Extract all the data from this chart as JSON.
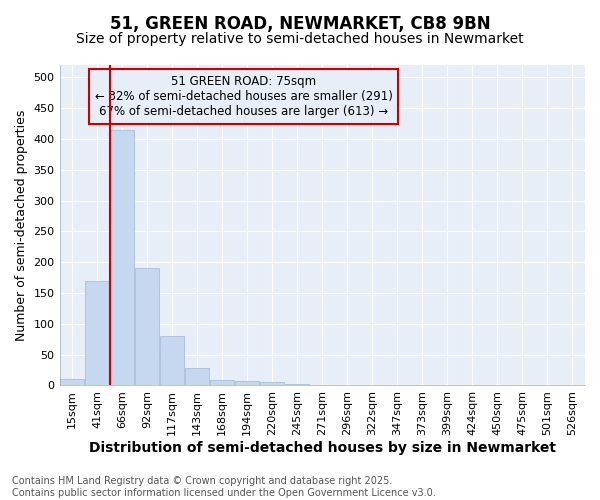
{
  "title": "51, GREEN ROAD, NEWMARKET, CB8 9BN",
  "subtitle": "Size of property relative to semi-detached houses in Newmarket",
  "xlabel": "Distribution of semi-detached houses by size in Newmarket",
  "ylabel": "Number of semi-detached properties",
  "categories": [
    "15sqm",
    "41sqm",
    "66sqm",
    "92sqm",
    "117sqm",
    "143sqm",
    "168sqm",
    "194sqm",
    "220sqm",
    "245sqm",
    "271sqm",
    "296sqm",
    "322sqm",
    "347sqm",
    "373sqm",
    "399sqm",
    "424sqm",
    "450sqm",
    "475sqm",
    "501sqm",
    "526sqm"
  ],
  "values": [
    10,
    170,
    415,
    190,
    80,
    28,
    9,
    7,
    5,
    2,
    1,
    1,
    1,
    0,
    0,
    0,
    0,
    0,
    0,
    0,
    0
  ],
  "bar_color": "#c6d8f0",
  "bar_edge_color": "#a0b8d8",
  "vline_color": "#cc0000",
  "property_label": "51 GREEN ROAD: 75sqm",
  "smaller_text": "← 32% of semi-detached houses are smaller (291)",
  "larger_text": "67% of semi-detached houses are larger (613) →",
  "annotation_box_color": "#cc0000",
  "ylim": [
    0,
    520
  ],
  "yticks": [
    0,
    50,
    100,
    150,
    200,
    250,
    300,
    350,
    400,
    450,
    500
  ],
  "plot_bg_color": "#e8eef8",
  "fig_bg_color": "#ffffff",
  "grid_color": "#ffffff",
  "footer": "Contains HM Land Registry data © Crown copyright and database right 2025.\nContains public sector information licensed under the Open Government Licence v3.0.",
  "title_fontsize": 12,
  "subtitle_fontsize": 10,
  "xlabel_fontsize": 10,
  "ylabel_fontsize": 9,
  "tick_fontsize": 8,
  "annot_fontsize": 8.5,
  "footer_fontsize": 7
}
